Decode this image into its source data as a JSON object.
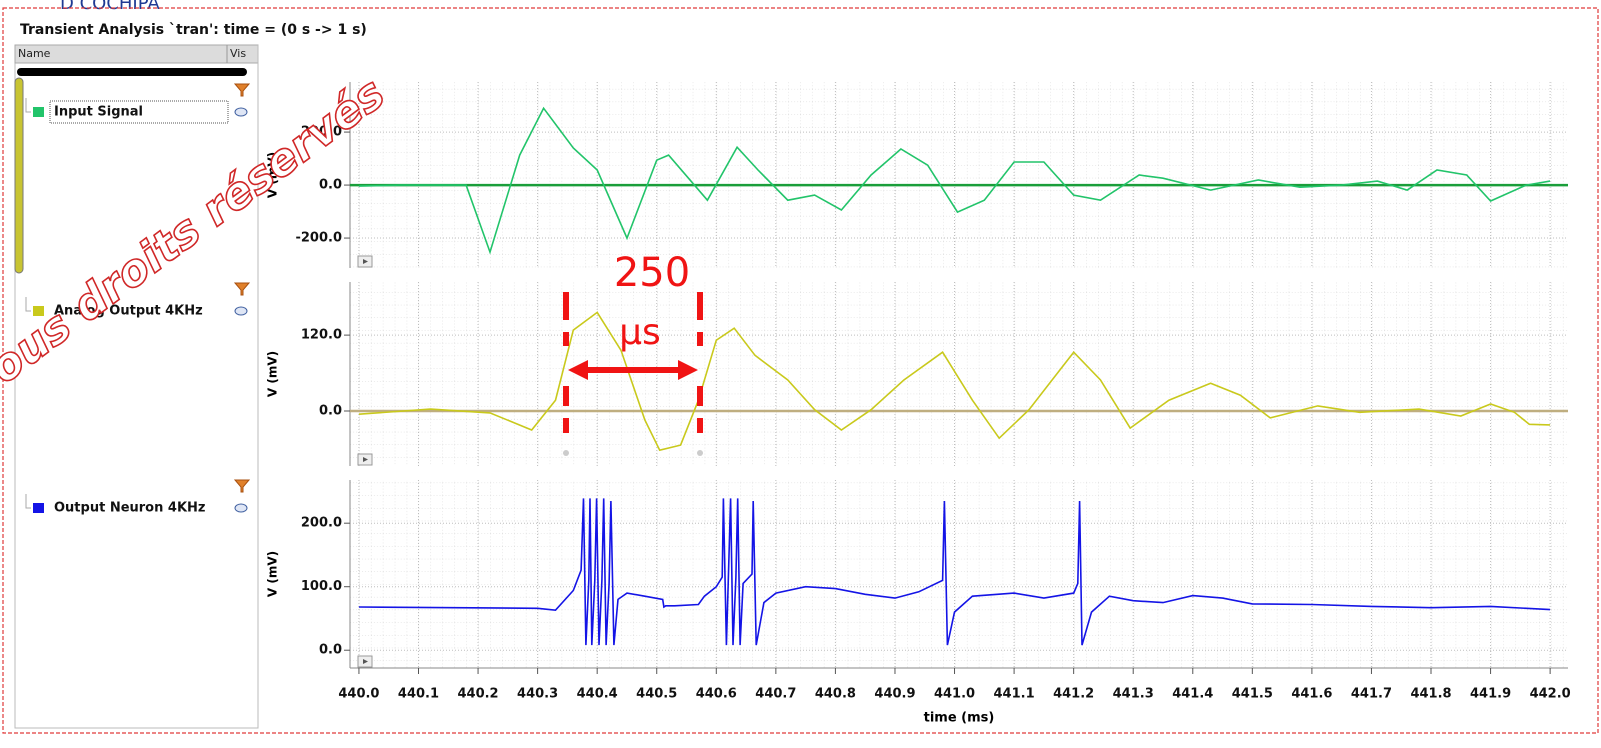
{
  "window": {
    "title": "Transient Analysis `tran': time = (0 s -> 1 s)",
    "header_fragment": "D COCHIPA",
    "watermark": "ous droits réservés"
  },
  "sidebar": {
    "columns": [
      "Name",
      "Vis"
    ]
  },
  "chart_data": [
    {
      "type": "line",
      "ylabel": "V (mV)",
      "grid": true,
      "zero_line_color": "#1a9e3a",
      "xlim": [
        439.985,
        442.03
      ],
      "ylim": [
        -313,
        389
      ],
      "yticks": [
        {
          "value": -200,
          "label": "-200.0"
        },
        {
          "value": 0,
          "label": "0.0"
        },
        {
          "value": 200,
          "label": "200.0"
        }
      ],
      "x": [
        440.0,
        440.07,
        440.18,
        440.22,
        440.27,
        440.31,
        440.36,
        440.4,
        440.45,
        440.5,
        440.52,
        440.585,
        440.635,
        440.67,
        440.72,
        440.765,
        440.81,
        440.86,
        440.91,
        440.955,
        441.005,
        441.05,
        441.1,
        441.15,
        441.2,
        441.245,
        441.31,
        441.35,
        441.43,
        441.51,
        441.58,
        441.65,
        441.71,
        441.76,
        441.81,
        441.86,
        441.9,
        441.96,
        442.0
      ],
      "series": [
        {
          "name": "Input Signal",
          "color": "#22c46a",
          "values": [
            -4,
            0,
            0,
            -253,
            113,
            290,
            140,
            57,
            -200,
            94,
            113,
            -57,
            143,
            57,
            -57,
            -38,
            -94,
            38,
            136,
            75,
            -102,
            -57,
            87,
            87,
            -38,
            -57,
            38,
            26,
            -19,
            19,
            -8,
            0,
            15,
            -19,
            57,
            38,
            -60,
            0,
            15
          ]
        }
      ]
    },
    {
      "type": "line",
      "ylabel": "V (mV)",
      "grid": true,
      "zero_line_color": "#bfae80",
      "xlim": [
        439.985,
        442.03
      ],
      "ylim": [
        -87,
        204
      ],
      "yticks": [
        {
          "value": 0,
          "label": "0.0"
        },
        {
          "value": 120,
          "label": "120.0"
        }
      ],
      "annotation": [
        "250",
        "µs"
      ],
      "x": [
        440.0,
        440.12,
        440.22,
        440.29,
        440.33,
        440.36,
        440.4,
        440.44,
        440.48,
        440.505,
        440.54,
        440.57,
        440.6,
        440.63,
        440.665,
        440.72,
        440.765,
        440.81,
        440.86,
        440.915,
        440.98,
        441.03,
        441.075,
        441.125,
        441.2,
        441.245,
        441.295,
        441.36,
        441.43,
        441.48,
        441.53,
        441.61,
        441.68,
        441.78,
        441.85,
        441.9,
        441.94,
        441.965,
        442.0
      ],
      "series": [
        {
          "name": "Analog Output 4KHz",
          "color": "#c9c91c",
          "values": [
            -5,
            3,
            -3,
            -30,
            17,
            128,
            156,
            96,
            -14,
            -62,
            -54,
            17,
            112,
            131,
            88,
            49,
            2,
            -30,
            2,
            49,
            93,
            17,
            -43,
            2,
            93,
            49,
            -27,
            17,
            44,
            25,
            -11,
            8,
            -2,
            3,
            -8,
            11,
            -2,
            -21,
            -22
          ]
        }
      ]
    },
    {
      "type": "line",
      "ylabel": "V (mV)",
      "xlabel": "time (ms)",
      "grid": true,
      "xlim": [
        439.985,
        442.03
      ],
      "ylim": [
        -28,
        268
      ],
      "xticks": [
        {
          "value": 440.0,
          "label": "440.0"
        },
        440.1,
        440.2,
        440.3,
        440.4,
        440.5,
        440.6,
        440.7,
        440.8,
        440.9,
        {
          "value": 441.0,
          "label": "441.0"
        },
        441.1,
        441.2,
        441.3,
        441.4,
        441.5,
        441.6,
        441.7,
        441.8,
        441.9,
        {
          "value": 442.0,
          "label": "442.0"
        }
      ],
      "yticks": [
        {
          "value": 0,
          "label": "0.0"
        },
        {
          "value": 100,
          "label": "100.0"
        },
        {
          "value": 200,
          "label": "200.0"
        }
      ],
      "x": [
        440.0,
        440.3,
        440.33,
        440.36,
        440.373,
        440.377,
        440.381,
        440.386,
        440.388,
        440.391,
        440.396,
        440.399,
        440.403,
        440.408,
        440.411,
        440.415,
        440.42,
        440.423,
        440.428,
        440.435,
        440.45,
        440.48,
        440.51,
        440.512,
        440.515,
        440.53,
        440.57,
        440.58,
        440.6,
        440.61,
        440.612,
        440.617,
        440.62,
        440.624,
        440.628,
        440.633,
        440.636,
        440.64,
        440.645,
        440.66,
        440.662,
        440.667,
        440.68,
        440.7,
        440.75,
        440.8,
        440.85,
        440.9,
        440.94,
        440.98,
        440.983,
        440.988,
        441.0,
        441.03,
        441.1,
        441.15,
        441.2,
        441.207,
        441.21,
        441.214,
        441.23,
        441.26,
        441.3,
        441.35,
        441.4,
        441.45,
        441.5,
        441.6,
        441.7,
        441.8,
        441.9,
        442.0
      ],
      "series": [
        {
          "name": "Output Neuron 4KHz",
          "color": "#1414e6",
          "values": [
            68,
            66,
            63,
            94,
            126,
            239,
            8,
            110,
            239,
            8,
            110,
            239,
            8,
            110,
            239,
            8,
            105,
            235,
            8,
            80,
            90,
            85,
            80,
            68,
            70,
            70,
            72,
            85,
            100,
            115,
            239,
            8,
            105,
            239,
            8,
            115,
            239,
            8,
            105,
            120,
            235,
            8,
            75,
            90,
            100,
            97,
            88,
            82,
            92,
            110,
            235,
            8,
            60,
            85,
            90,
            82,
            90,
            105,
            235,
            8,
            60,
            85,
            78,
            75,
            86,
            82,
            73,
            72,
            69,
            67,
            69,
            64
          ]
        }
      ]
    }
  ]
}
